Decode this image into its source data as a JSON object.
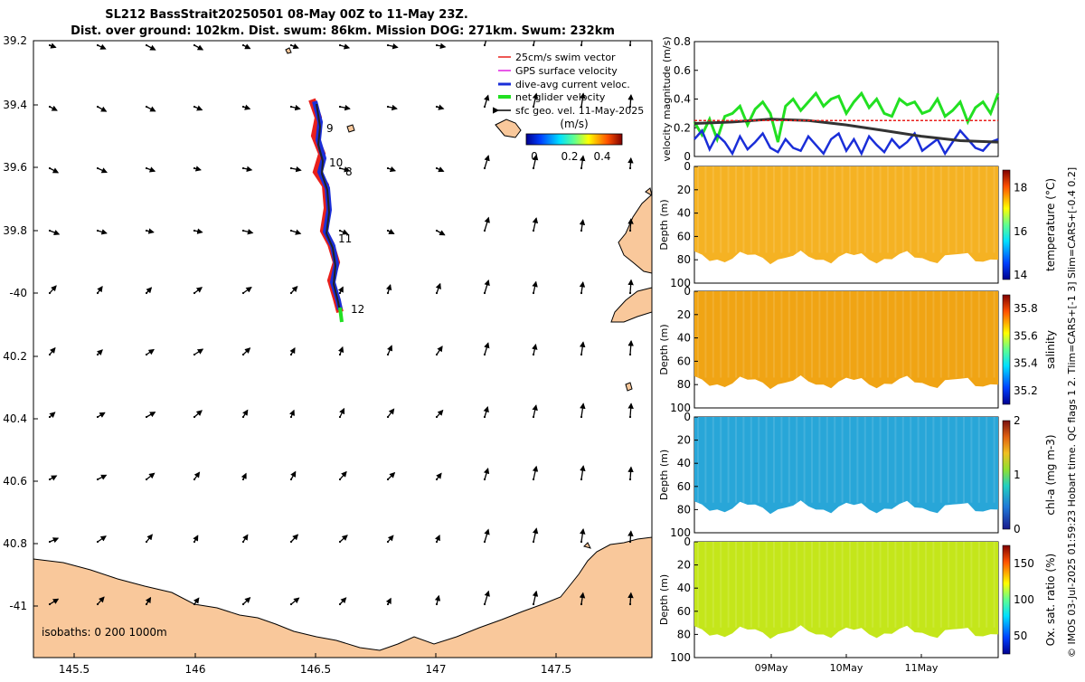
{
  "header": {
    "title_line1": "SL212 BassStrait20250501 08-May 00Z to 11-May 23Z.",
    "title_line2": "Dist. over ground: 102km. Dist. swum: 86km. Mission DOG: 271km. Swum: 232km"
  },
  "map": {
    "lon_ticks": [
      "145.5",
      "146",
      "146.5",
      "147",
      "147.5"
    ],
    "lat_ticks": [
      "39.2",
      "39.4",
      "39.6",
      "39.8",
      "-40",
      "40.2",
      "40.4",
      "40.6",
      "40.8",
      "-41"
    ],
    "legend": [
      {
        "label": "25cm/s swim vector",
        "color": "#e8201c"
      },
      {
        "label": "GPS surface velocity",
        "color": "#e020e0"
      },
      {
        "label": "dive-avg current veloc.",
        "color": "#1a2ed8"
      },
      {
        "label": "net glider velocity",
        "color": "#22e022"
      },
      {
        "label": "sfc geo. vel. 11-May-2025",
        "color": "#000000"
      }
    ],
    "colorbar_label": "(m/s)",
    "colorbar_ticks": [
      "0",
      "0.2",
      "0.4"
    ],
    "day_labels": [
      "9",
      "10",
      "8",
      "11",
      "12"
    ],
    "isobaths_label": "isobaths: 0   200  1000m",
    "land_color": "#f9c89b"
  },
  "chart_data": [
    {
      "type": "line",
      "title": "",
      "ylabel": "velocity magnitude (m/s)",
      "ylim": [
        0,
        0.8
      ],
      "yticks": [
        "0",
        "0.2",
        "0.4",
        "0.6",
        "0.8"
      ],
      "x_range_days": [
        0,
        4
      ],
      "series": [
        {
          "name": "net glider velocity",
          "color": "#22e022",
          "x": [
            0,
            0.1,
            0.2,
            0.3,
            0.4,
            0.5,
            0.6,
            0.7,
            0.8,
            0.9,
            1.0,
            1.1,
            1.2,
            1.3,
            1.4,
            1.5,
            1.6,
            1.7,
            1.8,
            1.9,
            2.0,
            2.1,
            2.2,
            2.3,
            2.4,
            2.5,
            2.6,
            2.7,
            2.8,
            2.9,
            3.0,
            3.1,
            3.2,
            3.3,
            3.4,
            3.5,
            3.6,
            3.7,
            3.8,
            3.9,
            4.0
          ],
          "values": [
            0.24,
            0.15,
            0.26,
            0.12,
            0.28,
            0.3,
            0.35,
            0.22,
            0.33,
            0.38,
            0.3,
            0.1,
            0.35,
            0.4,
            0.32,
            0.38,
            0.44,
            0.35,
            0.4,
            0.42,
            0.3,
            0.38,
            0.44,
            0.34,
            0.4,
            0.3,
            0.28,
            0.4,
            0.36,
            0.38,
            0.3,
            0.32,
            0.4,
            0.28,
            0.32,
            0.38,
            0.24,
            0.34,
            0.38,
            0.3,
            0.44
          ]
        },
        {
          "name": "dive-avg current veloc.",
          "color": "#1a2ed8",
          "x": [
            0,
            0.1,
            0.2,
            0.3,
            0.4,
            0.5,
            0.6,
            0.7,
            0.8,
            0.9,
            1.0,
            1.1,
            1.2,
            1.3,
            1.4,
            1.5,
            1.6,
            1.7,
            1.8,
            1.9,
            2.0,
            2.1,
            2.2,
            2.3,
            2.4,
            2.5,
            2.6,
            2.7,
            2.8,
            2.9,
            3.0,
            3.1,
            3.2,
            3.3,
            3.4,
            3.5,
            3.6,
            3.7,
            3.8,
            3.9,
            4.0
          ],
          "values": [
            0.12,
            0.18,
            0.05,
            0.15,
            0.1,
            0.02,
            0.14,
            0.05,
            0.1,
            0.16,
            0.06,
            0.03,
            0.12,
            0.06,
            0.04,
            0.14,
            0.08,
            0.02,
            0.12,
            0.16,
            0.04,
            0.12,
            0.02,
            0.14,
            0.08,
            0.03,
            0.12,
            0.06,
            0.1,
            0.16,
            0.04,
            0.08,
            0.12,
            0.02,
            0.1,
            0.18,
            0.12,
            0.06,
            0.04,
            0.1,
            0.12
          ]
        },
        {
          "name": "glider speed",
          "color": "#333333",
          "x": [
            0,
            0.5,
            1.0,
            1.5,
            2.0,
            2.5,
            3.0,
            3.5,
            4.0
          ],
          "values": [
            0.23,
            0.24,
            0.26,
            0.25,
            0.22,
            0.18,
            0.14,
            0.11,
            0.1
          ]
        },
        {
          "name": "25cm/s swim",
          "color": "#e8201c",
          "x": [
            0,
            4
          ],
          "values": [
            0.25,
            0.25
          ]
        }
      ]
    },
    {
      "type": "heatmap",
      "ylabel": "Depth (m)",
      "ylim": [
        100,
        0
      ],
      "yticks": [
        "0",
        "20",
        "40",
        "60",
        "80",
        "100"
      ],
      "colorbar_label": "temperature (°C)",
      "colorbar_ticks": [
        "18",
        "16",
        "14"
      ],
      "clim": [
        13.8,
        18.8
      ],
      "fill_color": "#f5b223"
    },
    {
      "type": "heatmap",
      "ylabel": "Depth (m)",
      "ylim": [
        100,
        0
      ],
      "yticks": [
        "0",
        "20",
        "40",
        "60",
        "80",
        "100"
      ],
      "colorbar_label": "salinity",
      "colorbar_ticks": [
        "35.8",
        "35.6",
        "35.4",
        "35.2"
      ],
      "clim": [
        35.1,
        35.9
      ],
      "fill_color": "#f0a414"
    },
    {
      "type": "heatmap",
      "ylabel": "Depth (m)",
      "ylim": [
        100,
        0
      ],
      "yticks": [
        "0",
        "20",
        "40",
        "60",
        "80",
        "100"
      ],
      "colorbar_label": "chl-a (mg m-3)",
      "colorbar_ticks": [
        "2",
        "1",
        "0"
      ],
      "clim": [
        0,
        2
      ],
      "fill_color": "#28a6d8"
    },
    {
      "type": "heatmap",
      "ylabel": "Depth (m)",
      "ylim": [
        100,
        0
      ],
      "yticks": [
        "0",
        "20",
        "40",
        "60",
        "80",
        "100"
      ],
      "colorbar_label": "Ox. sat. ratio (%)",
      "colorbar_ticks": [
        "150",
        "100",
        "50"
      ],
      "clim": [
        25,
        175
      ],
      "fill_color": "#c4e61a",
      "x_ticks": [
        "09May",
        "10May",
        "11May"
      ]
    }
  ],
  "footer": {
    "side_note": "© IMOS 03-Jul-2025 01:59:23 Hobart time. QC flags 1  2. Tlim=CARS+[-1 3] Slim=CARS+[-0.4 0.2]"
  }
}
